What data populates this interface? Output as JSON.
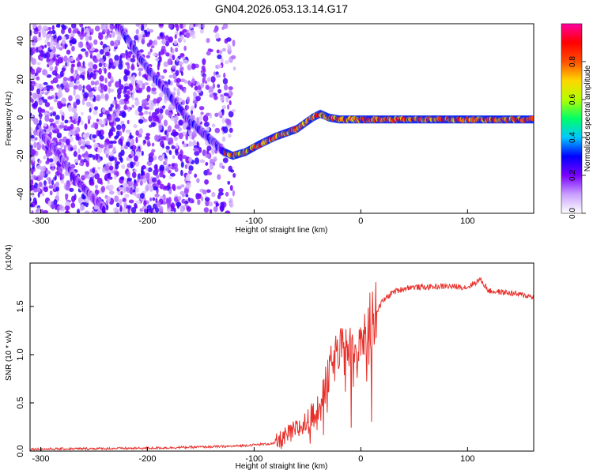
{
  "title": "GN04.2026.053.13.14.G17",
  "chart_data": [
    {
      "type": "heatmap",
      "name": "spectrogram",
      "xlabel": "Height of straight line (km)",
      "ylabel": "Frequency (Hz)",
      "xlim": [
        -310,
        162
      ],
      "ylim": [
        -50,
        49
      ],
      "xticks": [
        -300,
        -200,
        -100,
        0,
        100
      ],
      "yticks": [
        -40,
        -20,
        0,
        20,
        40
      ],
      "colorbar": {
        "label": "Normalized spectral amplitude",
        "range": [
          0,
          1
        ],
        "ticks": [
          "0.0",
          "0.2",
          "0.4",
          "0.6",
          "0.8"
        ],
        "colormap": [
          "#ffffff",
          "#c9a0ff",
          "#7a00ff",
          "#0000ff",
          "#00c8ff",
          "#00ff66",
          "#b4ff00",
          "#ffd700",
          "#ff5000",
          "#ff0000",
          "#ff00a0"
        ]
      },
      "ridges": [
        {
          "points": [
            [
              -228,
              48
            ],
            [
              -220,
              42
            ],
            [
              -208,
              32
            ],
            [
              -195,
              22
            ],
            [
              -180,
              12
            ],
            [
              -160,
              -2
            ],
            [
              -140,
              -12
            ],
            [
              -128,
              -18
            ]
          ],
          "amplitude": 0.3
        },
        {
          "points": [
            [
              -300,
              -8
            ],
            [
              -285,
              -18
            ],
            [
              -270,
              -30
            ],
            [
              -255,
              -40
            ],
            [
              -240,
              -48
            ]
          ],
          "amplitude": 0.25
        },
        {
          "points": [
            [
              -128,
              -18
            ],
            [
              -120,
              -20
            ],
            [
              -108,
              -18
            ],
            [
              -95,
              -14
            ],
            [
              -80,
              -10
            ],
            [
              -60,
              -6
            ],
            [
              -45,
              0
            ],
            [
              -38,
              2
            ],
            [
              -30,
              0
            ],
            [
              -20,
              -1
            ],
            [
              0,
              -1
            ],
            [
              30,
              -1
            ],
            [
              60,
              -1
            ],
            [
              80,
              -1
            ],
            [
              100,
              -1
            ],
            [
              162,
              -1
            ]
          ],
          "amplitude": 0.9
        }
      ]
    },
    {
      "type": "line",
      "name": "snr",
      "xlabel": "Height of straight line (km)",
      "ylabel": "SNR (10 * v/v)",
      "y_multiplier": "(x10^4)",
      "xlim": [
        -310,
        162
      ],
      "ylim": [
        0,
        1.95
      ],
      "xticks": [
        -300,
        -200,
        -100,
        0,
        100
      ],
      "yticks": [
        "0.0",
        "0.5",
        "1.0",
        "1.5"
      ],
      "color": "#e8302a",
      "series": [
        {
          "x": [
            -310,
            -200,
            -120,
            -80,
            -70,
            -60,
            -50,
            -40,
            -35,
            -30,
            -25,
            -20,
            -10,
            0,
            10,
            20,
            30,
            45,
            60,
            80,
            100,
            112,
            120,
            140,
            162
          ],
          "y": [
            0.02,
            0.03,
            0.05,
            0.08,
            0.15,
            0.22,
            0.3,
            0.45,
            0.6,
            0.8,
            0.95,
            1.0,
            1.1,
            1.2,
            1.35,
            1.55,
            1.65,
            1.7,
            1.7,
            1.71,
            1.7,
            1.78,
            1.66,
            1.64,
            1.6
          ]
        }
      ]
    }
  ]
}
